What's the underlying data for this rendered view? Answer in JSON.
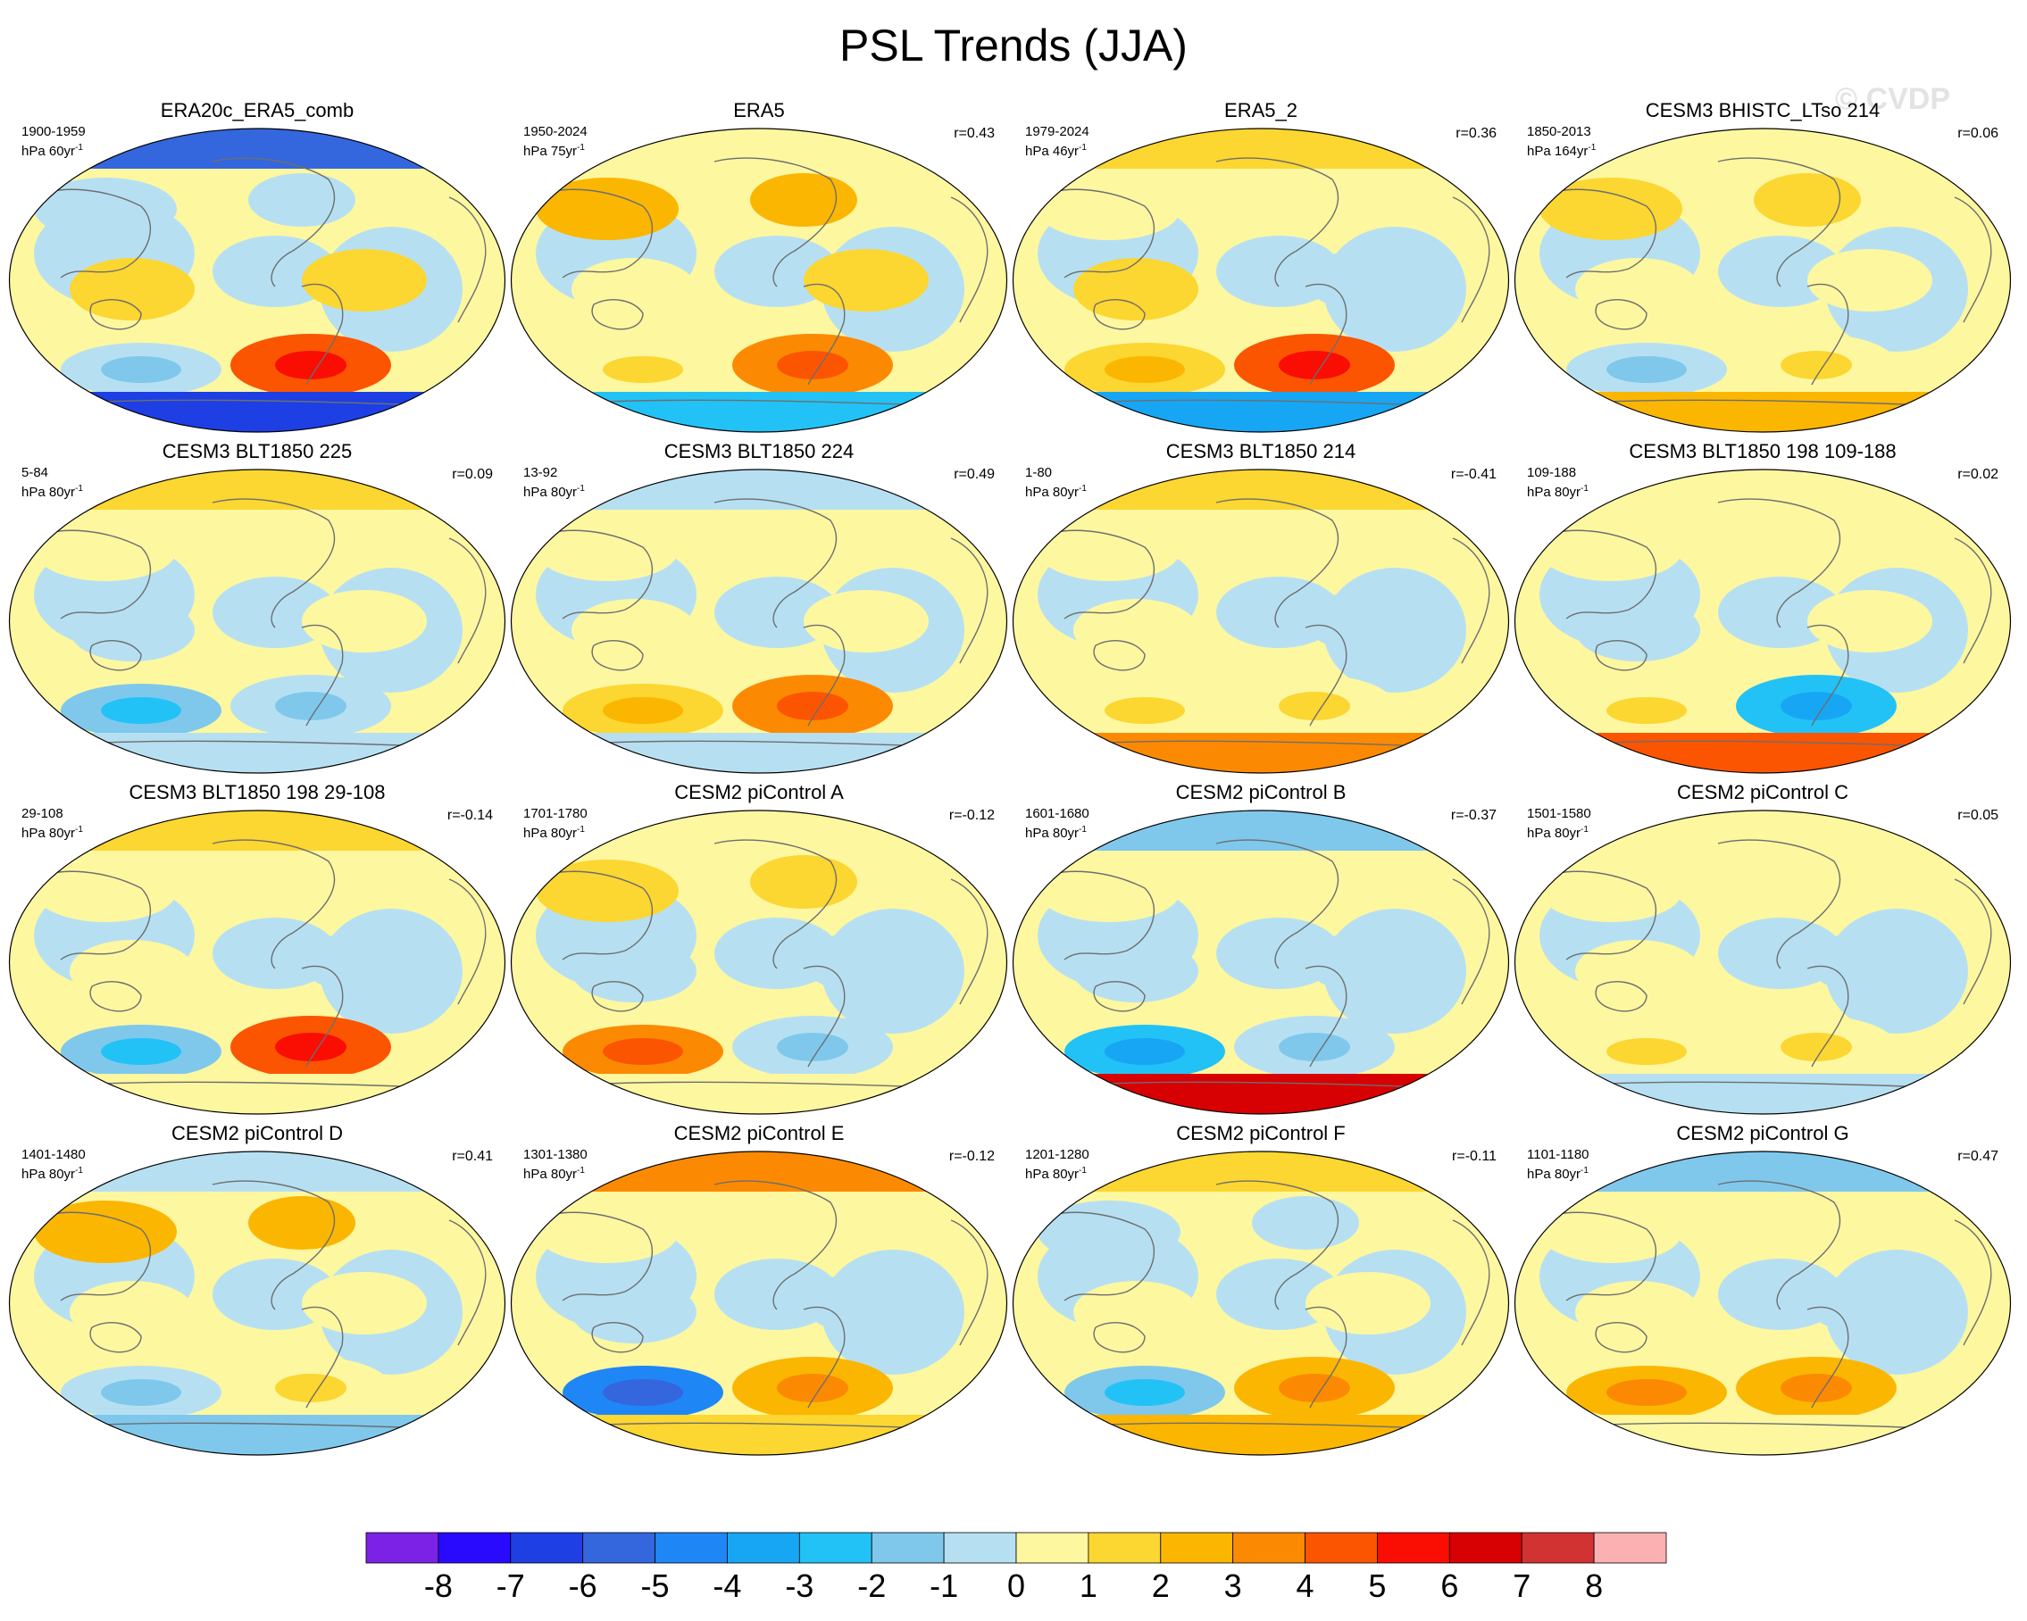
{
  "title": "PSL Trends (JJA)",
  "watermark": "© CVDP",
  "panels": [
    {
      "title": "ERA20c_ERA5_comb",
      "years": "1900-1959",
      "units": "hPa 60yr",
      "corr": "",
      "pattern": [
        -6,
        -1,
        1,
        1,
        -1,
        4,
        -7
      ]
    },
    {
      "title": "ERA5",
      "years": "1950-2024",
      "units": "hPa 75yr",
      "corr": "r=0.43",
      "pattern": [
        0,
        2,
        0,
        1,
        0,
        3,
        -3
      ]
    },
    {
      "title": "ERA5_2",
      "years": "1979-2024",
      "units": "hPa 46yr",
      "corr": "r=0.36",
      "pattern": [
        1,
        0,
        1,
        -1,
        1,
        4,
        -4
      ]
    },
    {
      "title": "CESM3 BHISTC_LTso 214",
      "years": "1850-2013",
      "units": "hPa 164yr",
      "corr": "r=0.06",
      "pattern": [
        0,
        1,
        0,
        0,
        -1,
        0,
        2
      ]
    },
    {
      "title": "CESM3 BLT1850 225",
      "years": "5-84",
      "units": "hPa 80yr",
      "corr": "r=0.09",
      "pattern": [
        1,
        0,
        -1,
        0,
        -2,
        -1,
        -1
      ]
    },
    {
      "title": "CESM3 BLT1850 224",
      "years": "13-92",
      "units": "hPa 80yr",
      "corr": "r=0.49",
      "pattern": [
        -1,
        0,
        0,
        0,
        1,
        3,
        -1
      ]
    },
    {
      "title": "CESM3 BLT1850 214",
      "years": "1-80",
      "units": "hPa 80yr",
      "corr": "r=-0.41",
      "pattern": [
        1,
        0,
        0,
        -1,
        0,
        0,
        3
      ]
    },
    {
      "title": "CESM3 BLT1850 198 109-188",
      "years": "109-188",
      "units": "hPa 80yr",
      "corr": "r=0.02",
      "pattern": [
        0,
        0,
        -1,
        0,
        0,
        -3,
        4
      ]
    },
    {
      "title": "CESM3 BLT1850 198 29-108",
      "years": "29-108",
      "units": "hPa 80yr",
      "corr": "r=-0.14",
      "pattern": [
        1,
        0,
        0,
        -1,
        -2,
        4,
        0
      ]
    },
    {
      "title": "CESM2 piControl A",
      "years": "1701-1780",
      "units": "hPa 80yr",
      "corr": "r=-0.12",
      "pattern": [
        0,
        1,
        -1,
        -1,
        3,
        -1,
        0
      ]
    },
    {
      "title": "CESM2 piControl B",
      "years": "1601-1680",
      "units": "hPa 80yr",
      "corr": "r=-0.37",
      "pattern": [
        -2,
        0,
        -1,
        -1,
        -3,
        -1,
        6
      ]
    },
    {
      "title": "CESM2 piControl C",
      "years": "1501-1580",
      "units": "hPa 80yr",
      "corr": "r=0.05",
      "pattern": [
        0,
        0,
        0,
        -1,
        0,
        0,
        -1
      ]
    },
    {
      "title": "CESM2 piControl D",
      "years": "1401-1480",
      "units": "hPa 80yr",
      "corr": "r=0.41",
      "pattern": [
        -1,
        2,
        0,
        0,
        -1,
        0,
        -2
      ]
    },
    {
      "title": "CESM2 piControl E",
      "years": "1301-1380",
      "units": "hPa 80yr",
      "corr": "r=-0.12",
      "pattern": [
        3,
        0,
        -1,
        -1,
        -5,
        2,
        1
      ]
    },
    {
      "title": "CESM2 piControl F",
      "years": "1201-1280",
      "units": "hPa 80yr",
      "corr": "r=-0.11",
      "pattern": [
        1,
        -1,
        0,
        0,
        -2,
        2,
        2
      ]
    },
    {
      "title": "CESM2 piControl G",
      "years": "1101-1180",
      "units": "hPa 80yr",
      "corr": "r=0.47",
      "pattern": [
        -2,
        0,
        0,
        -1,
        2,
        2,
        0
      ]
    }
  ],
  "colorbar": {
    "labels": [
      "-8",
      "-7",
      "-6",
      "-5",
      "-4",
      "-3",
      "-2",
      "-1",
      "0",
      "1",
      "2",
      "3",
      "4",
      "5",
      "6",
      "7",
      "8"
    ],
    "levels": [
      -8,
      -7,
      -6,
      -5,
      -4,
      -3,
      -2,
      -1,
      0,
      1,
      2,
      3,
      4,
      5,
      6,
      7,
      8
    ],
    "colors": [
      "#7b22e6",
      "#2a0aff",
      "#1d3fe4",
      "#3466dd",
      "#1f86f6",
      "#17a6f4",
      "#22c2f6",
      "#7fc8ec",
      "#b6e0f2",
      "#fdf7a0",
      "#fcd631",
      "#fbb602",
      "#fb8a02",
      "#fb5502",
      "#fa0d02",
      "#d70002",
      "#d13232",
      "#fbb1b1"
    ]
  }
}
